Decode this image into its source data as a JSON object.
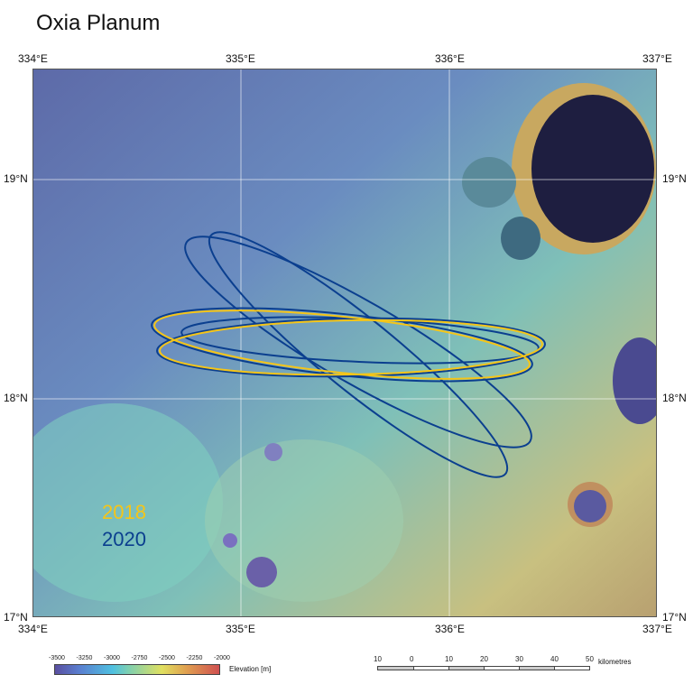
{
  "title": "Oxia Planum",
  "lon_labels": [
    "334°E",
    "335°E",
    "336°E",
    "337°E"
  ],
  "lat_labels": [
    "19°N",
    "18°N",
    "17°N"
  ],
  "ellipse_years": {
    "y2018": "2018",
    "y2020": "2020"
  },
  "colors": {
    "y2018": "#f5c518",
    "y2020": "#0b3f8f"
  },
  "elevation_legend": {
    "ticks": [
      "-3500",
      "-3250",
      "-3000",
      "-2750",
      "-2500",
      "-2250",
      "-2000"
    ],
    "label": "Elevation [m]"
  },
  "scale_bar": {
    "ticks": [
      "10",
      "0",
      "10",
      "20",
      "30",
      "40",
      "50"
    ],
    "unit": "kilometres"
  }
}
